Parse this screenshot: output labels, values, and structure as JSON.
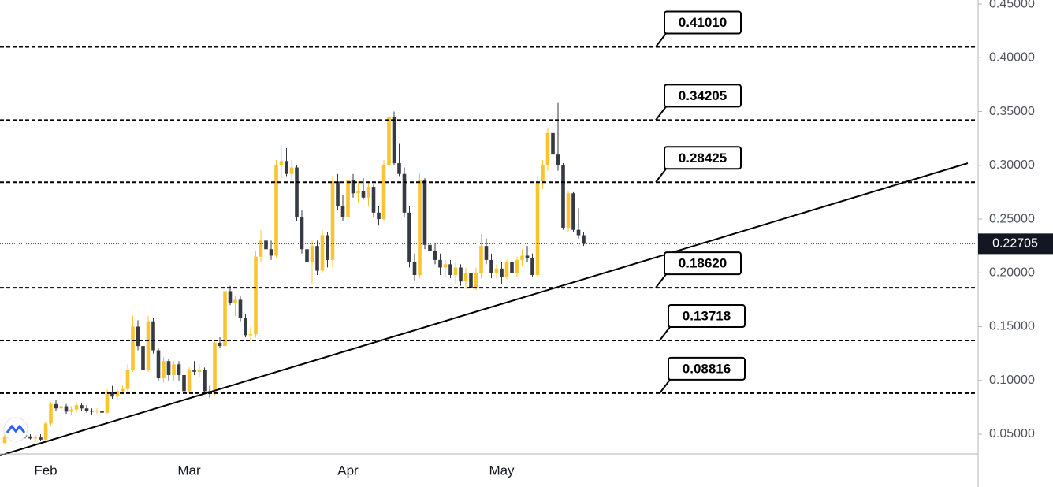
{
  "chart_data": {
    "type": "candlestick",
    "categories": [
      null,
      null,
      null,
      null,
      null,
      null,
      null,
      null,
      "Feb",
      null,
      null,
      null,
      null,
      null,
      null,
      null,
      null,
      null,
      null,
      null,
      null,
      null,
      null,
      null,
      null,
      null,
      null,
      null,
      null,
      null,
      null,
      null,
      null,
      null,
      null,
      null,
      "Mar",
      null,
      null,
      null,
      null,
      null,
      null,
      null,
      null,
      null,
      null,
      null,
      null,
      null,
      null,
      null,
      null,
      null,
      null,
      null,
      null,
      null,
      null,
      null,
      null,
      null,
      null,
      null,
      null,
      null,
      null,
      "Apr",
      null,
      null,
      null,
      null,
      null,
      null,
      null,
      null,
      null,
      null,
      null,
      null,
      null,
      null,
      null,
      null,
      null,
      null,
      null,
      null,
      null,
      null,
      null,
      null,
      null,
      null,
      null,
      null,
      null,
      "May",
      null,
      null,
      null,
      null,
      null,
      null,
      null,
      null,
      null,
      null,
      null,
      null,
      null,
      null,
      null,
      null
    ],
    "ohlc": [
      [
        0.042,
        0.05,
        0.04,
        0.048
      ],
      [
        0.048,
        0.052,
        0.045,
        0.05
      ],
      [
        0.05,
        0.053,
        0.046,
        0.047
      ],
      [
        0.047,
        0.051,
        0.044,
        0.049
      ],
      [
        0.049,
        0.052,
        0.046,
        0.048
      ],
      [
        0.048,
        0.05,
        0.045,
        0.046
      ],
      [
        0.046,
        0.049,
        0.044,
        0.047
      ],
      [
        0.047,
        0.05,
        0.044,
        0.045
      ],
      [
        0.045,
        0.062,
        0.044,
        0.06
      ],
      [
        0.06,
        0.08,
        0.058,
        0.078
      ],
      [
        0.078,
        0.082,
        0.072,
        0.074
      ],
      [
        0.074,
        0.079,
        0.07,
        0.076
      ],
      [
        0.076,
        0.078,
        0.069,
        0.071
      ],
      [
        0.071,
        0.076,
        0.068,
        0.073
      ],
      [
        0.073,
        0.08,
        0.07,
        0.077
      ],
      [
        0.077,
        0.079,
        0.072,
        0.074
      ],
      [
        0.074,
        0.077,
        0.07,
        0.072
      ],
      [
        0.072,
        0.074,
        0.068,
        0.071
      ],
      [
        0.071,
        0.074,
        0.069,
        0.072
      ],
      [
        0.072,
        0.075,
        0.068,
        0.07
      ],
      [
        0.07,
        0.092,
        0.069,
        0.089
      ],
      [
        0.089,
        0.095,
        0.083,
        0.085
      ],
      [
        0.085,
        0.092,
        0.082,
        0.09
      ],
      [
        0.09,
        0.096,
        0.087,
        0.092
      ],
      [
        0.092,
        0.115,
        0.09,
        0.11
      ],
      [
        0.11,
        0.16,
        0.108,
        0.15
      ],
      [
        0.15,
        0.156,
        0.128,
        0.132
      ],
      [
        0.132,
        0.15,
        0.108,
        0.11
      ],
      [
        0.11,
        0.16,
        0.108,
        0.155
      ],
      [
        0.155,
        0.158,
        0.125,
        0.128
      ],
      [
        0.128,
        0.13,
        0.1,
        0.102
      ],
      [
        0.102,
        0.122,
        0.098,
        0.118
      ],
      [
        0.118,
        0.12,
        0.1,
        0.105
      ],
      [
        0.105,
        0.118,
        0.1,
        0.115
      ],
      [
        0.115,
        0.118,
        0.1,
        0.105
      ],
      [
        0.105,
        0.108,
        0.088,
        0.09
      ],
      [
        0.09,
        0.112,
        0.088,
        0.11
      ],
      [
        0.11,
        0.118,
        0.105,
        0.108
      ],
      [
        0.108,
        0.115,
        0.103,
        0.11
      ],
      [
        0.11,
        0.112,
        0.088,
        0.09
      ],
      [
        0.09,
        0.095,
        0.084,
        0.088
      ],
      [
        0.088,
        0.138,
        0.086,
        0.135
      ],
      [
        0.135,
        0.14,
        0.13,
        0.132
      ],
      [
        0.132,
        0.188,
        0.13,
        0.183
      ],
      [
        0.183,
        0.188,
        0.17,
        0.172
      ],
      [
        0.172,
        0.178,
        0.16,
        0.175
      ],
      [
        0.175,
        0.178,
        0.155,
        0.158
      ],
      [
        0.158,
        0.162,
        0.14,
        0.142
      ],
      [
        0.142,
        0.15,
        0.136,
        0.143
      ],
      [
        0.143,
        0.22,
        0.14,
        0.215
      ],
      [
        0.215,
        0.24,
        0.21,
        0.23
      ],
      [
        0.23,
        0.235,
        0.218,
        0.222
      ],
      [
        0.222,
        0.23,
        0.212,
        0.216
      ],
      [
        0.216,
        0.305,
        0.214,
        0.3
      ],
      [
        0.3,
        0.318,
        0.288,
        0.304
      ],
      [
        0.304,
        0.316,
        0.29,
        0.292
      ],
      [
        0.292,
        0.305,
        0.285,
        0.298
      ],
      [
        0.298,
        0.3,
        0.248,
        0.252
      ],
      [
        0.252,
        0.258,
        0.218,
        0.222
      ],
      [
        0.222,
        0.235,
        0.205,
        0.21
      ],
      [
        0.21,
        0.23,
        0.19,
        0.225
      ],
      [
        0.225,
        0.23,
        0.198,
        0.202
      ],
      [
        0.202,
        0.24,
        0.2,
        0.235
      ],
      [
        0.235,
        0.238,
        0.205,
        0.212
      ],
      [
        0.212,
        0.29,
        0.205,
        0.285
      ],
      [
        0.285,
        0.292,
        0.258,
        0.262
      ],
      [
        0.262,
        0.272,
        0.248,
        0.252
      ],
      [
        0.252,
        0.29,
        0.25,
        0.286
      ],
      [
        0.286,
        0.292,
        0.27,
        0.274
      ],
      [
        0.274,
        0.285,
        0.265,
        0.276
      ],
      [
        0.276,
        0.288,
        0.268,
        0.27
      ],
      [
        0.27,
        0.285,
        0.262,
        0.28
      ],
      [
        0.28,
        0.282,
        0.252,
        0.256
      ],
      [
        0.256,
        0.262,
        0.244,
        0.25
      ],
      [
        0.25,
        0.305,
        0.248,
        0.3
      ],
      [
        0.3,
        0.356,
        0.296,
        0.345
      ],
      [
        0.345,
        0.35,
        0.3,
        0.302
      ],
      [
        0.302,
        0.32,
        0.29,
        0.292
      ],
      [
        0.292,
        0.298,
        0.252,
        0.256
      ],
      [
        0.256,
        0.262,
        0.205,
        0.21
      ],
      [
        0.21,
        0.218,
        0.193,
        0.198
      ],
      [
        0.198,
        0.292,
        0.195,
        0.286
      ],
      [
        0.286,
        0.288,
        0.222,
        0.226
      ],
      [
        0.226,
        0.232,
        0.215,
        0.22
      ],
      [
        0.22,
        0.228,
        0.208,
        0.212
      ],
      [
        0.212,
        0.218,
        0.198,
        0.205
      ],
      [
        0.205,
        0.212,
        0.196,
        0.208
      ],
      [
        0.208,
        0.212,
        0.195,
        0.198
      ],
      [
        0.198,
        0.21,
        0.19,
        0.205
      ],
      [
        0.205,
        0.208,
        0.188,
        0.192
      ],
      [
        0.192,
        0.205,
        0.185,
        0.2
      ],
      [
        0.2,
        0.203,
        0.182,
        0.186
      ],
      [
        0.186,
        0.205,
        0.184,
        0.2
      ],
      [
        0.2,
        0.236,
        0.195,
        0.225
      ],
      [
        0.225,
        0.232,
        0.208,
        0.212
      ],
      [
        0.212,
        0.218,
        0.195,
        0.2
      ],
      [
        0.2,
        0.208,
        0.195,
        0.204
      ],
      [
        0.204,
        0.21,
        0.19,
        0.196
      ],
      [
        0.196,
        0.212,
        0.194,
        0.21
      ],
      [
        0.21,
        0.225,
        0.195,
        0.2
      ],
      [
        0.2,
        0.215,
        0.196,
        0.212
      ],
      [
        0.212,
        0.222,
        0.206,
        0.216
      ],
      [
        0.216,
        0.225,
        0.21,
        0.214
      ],
      [
        0.214,
        0.218,
        0.196,
        0.198
      ],
      [
        0.198,
        0.29,
        0.196,
        0.285
      ],
      [
        0.285,
        0.305,
        0.278,
        0.3
      ],
      [
        0.3,
        0.335,
        0.295,
        0.33
      ],
      [
        0.33,
        0.345,
        0.305,
        0.31
      ],
      [
        0.31,
        0.358,
        0.295,
        0.3
      ],
      [
        0.3,
        0.302,
        0.24,
        0.242
      ],
      [
        0.242,
        0.276,
        0.238,
        0.274
      ],
      [
        0.274,
        0.275,
        0.238,
        0.24
      ],
      [
        0.24,
        0.26,
        0.232,
        0.235
      ],
      [
        0.235,
        0.238,
        0.225,
        0.22705
      ]
    ],
    "up_color": "#f9c430",
    "down_color": "#363a45",
    "ylim": [
      0.0317,
      0.4537
    ],
    "yticks": [
      {
        "value": 0.45,
        "label": "0.45000"
      },
      {
        "value": 0.4,
        "label": "0.40000"
      },
      {
        "value": 0.35,
        "label": "0.35000"
      },
      {
        "value": 0.3,
        "label": "0.30000"
      },
      {
        "value": 0.25,
        "label": "0.25000"
      },
      {
        "value": 0.2,
        "label": "0.20000"
      },
      {
        "value": 0.15,
        "label": "0.15000"
      },
      {
        "value": 0.1,
        "label": "0.10000"
      },
      {
        "value": 0.05,
        "label": "0.05000"
      }
    ],
    "levels": [
      {
        "value": 0.4101,
        "label": "0.41010"
      },
      0.34205,
      0.28425,
      {
        "value": 0.1862,
        "label": "0.18620"
      },
      0.13718,
      0.08816
    ],
    "last_price": 0.22705,
    "grid": false
  }
}
